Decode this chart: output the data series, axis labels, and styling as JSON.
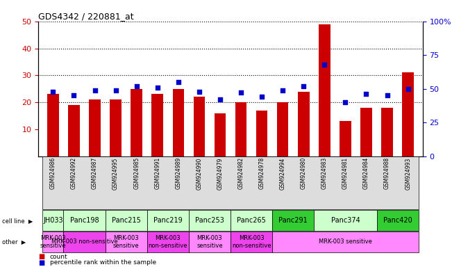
{
  "title": "GDS4342 / 220881_at",
  "samples": [
    "GSM924986",
    "GSM924992",
    "GSM924987",
    "GSM924995",
    "GSM924985",
    "GSM924991",
    "GSM924989",
    "GSM924990",
    "GSM924979",
    "GSM924982",
    "GSM924978",
    "GSM924994",
    "GSM924980",
    "GSM924983",
    "GSM924981",
    "GSM924984",
    "GSM924988",
    "GSM924993"
  ],
  "counts": [
    23,
    19,
    21,
    21,
    25,
    23,
    25,
    22,
    16,
    20,
    17,
    20,
    24,
    49,
    13,
    18,
    18,
    31
  ],
  "percentile_ranks": [
    48,
    45,
    49,
    49,
    52,
    51,
    55,
    48,
    42,
    47,
    44,
    49,
    52,
    68,
    40,
    46,
    45,
    50
  ],
  "cell_lines": [
    {
      "name": "JH033",
      "start": 0,
      "end": 1,
      "color": "#ccffcc"
    },
    {
      "name": "Panc198",
      "start": 1,
      "end": 3,
      "color": "#ccffcc"
    },
    {
      "name": "Panc215",
      "start": 3,
      "end": 5,
      "color": "#ccffcc"
    },
    {
      "name": "Panc219",
      "start": 5,
      "end": 7,
      "color": "#ccffcc"
    },
    {
      "name": "Panc253",
      "start": 7,
      "end": 9,
      "color": "#ccffcc"
    },
    {
      "name": "Panc265",
      "start": 9,
      "end": 11,
      "color": "#ccffcc"
    },
    {
      "name": "Panc291",
      "start": 11,
      "end": 13,
      "color": "#33cc33"
    },
    {
      "name": "Panc374",
      "start": 13,
      "end": 16,
      "color": "#ccffcc"
    },
    {
      "name": "Panc420",
      "start": 16,
      "end": 18,
      "color": "#33cc33"
    }
  ],
  "others": [
    {
      "name": "MRK-003\nsensitive",
      "start": 0,
      "end": 1,
      "color": "#ff88ff"
    },
    {
      "name": "MRK-003 non-sensitive",
      "start": 1,
      "end": 3,
      "color": "#ee44ee"
    },
    {
      "name": "MRK-003\nsensitive",
      "start": 3,
      "end": 5,
      "color": "#ff88ff"
    },
    {
      "name": "MRK-003\nnon-sensitive",
      "start": 5,
      "end": 7,
      "color": "#ee44ee"
    },
    {
      "name": "MRK-003\nsensitive",
      "start": 7,
      "end": 9,
      "color": "#ff88ff"
    },
    {
      "name": "MRK-003\nnon-sensitive",
      "start": 9,
      "end": 11,
      "color": "#ee44ee"
    },
    {
      "name": "MRK-003 sensitive",
      "start": 11,
      "end": 18,
      "color": "#ff88ff"
    }
  ],
  "ylim_left": [
    0,
    50
  ],
  "ylim_right": [
    0,
    100
  ],
  "yticks_left": [
    10,
    20,
    30,
    40,
    50
  ],
  "yticks_right": [
    0,
    25,
    50,
    75,
    100
  ],
  "bar_color": "#cc0000",
  "dot_color": "#0000cc",
  "bg_color": "#ffffff",
  "left_tick_color": "#cc0000",
  "right_tick_color": "#0000cc",
  "xtick_bg": "#dddddd"
}
